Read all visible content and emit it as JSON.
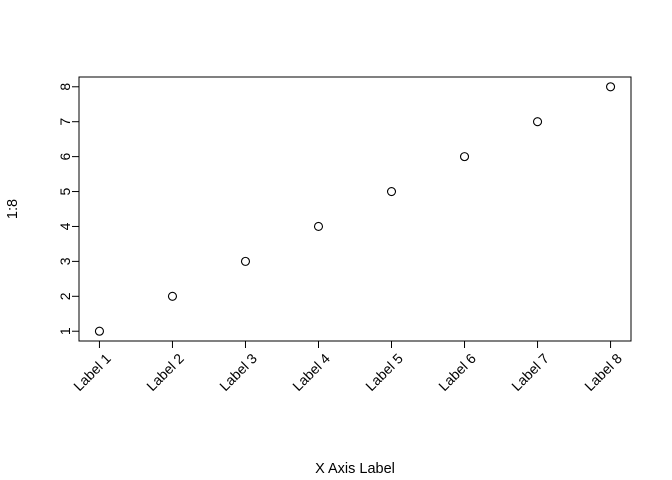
{
  "chart_data": {
    "type": "scatter",
    "title": "",
    "xlabel": "X Axis Label",
    "ylabel": "1:8",
    "categories": [
      "Label 1",
      "Label 2",
      "Label 3",
      "Label 4",
      "Label 5",
      "Label 6",
      "Label 7",
      "Label 8"
    ],
    "x": [
      1,
      2,
      3,
      4,
      5,
      6,
      7,
      8
    ],
    "y": [
      1,
      2,
      3,
      4,
      5,
      6,
      7,
      8
    ],
    "y_ticks": [
      1,
      2,
      3,
      4,
      5,
      6,
      7,
      8
    ],
    "xlim": [
      0.72,
      8.28
    ],
    "ylim": [
      0.72,
      8.28
    ],
    "marker": "open-circle",
    "grid": false,
    "legend": "none",
    "colors": {
      "marker": "#000000",
      "axis": "#000000",
      "background": "#ffffff"
    }
  }
}
